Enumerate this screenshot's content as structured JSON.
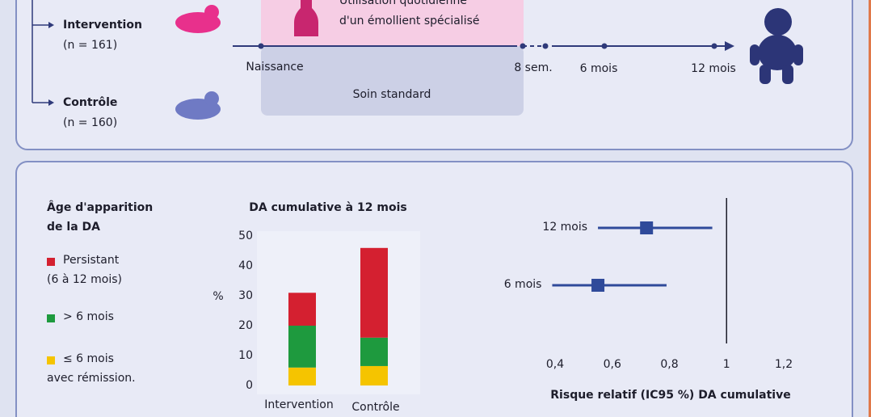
{
  "top": {
    "groups": [
      {
        "name": "Intervention",
        "n": "(n = 161)"
      },
      {
        "name": "Contrôle",
        "n": "(n = 160)"
      }
    ],
    "emollient": [
      "Utilisation quotidienne",
      "d'un émollient spécialisé"
    ],
    "standard": "Soin standard",
    "timeline": [
      "Naissance",
      "8 sem.",
      "6 mois",
      "12 mois"
    ]
  },
  "chart_data": [
    {
      "type": "bar",
      "stacked": true,
      "title": "DA cumulative à 12 mois",
      "ylabel": "%",
      "legend_title": "Âge d'apparition\nde la DA",
      "categories": [
        "Intervention",
        "Contrôle"
      ],
      "series": [
        {
          "name": "≤ 6 mois\navec rémission.",
          "color": "#f5c400",
          "values": [
            6,
            6.5
          ]
        },
        {
          "name": "> 6 mois",
          "color": "#1e9a3e",
          "values": [
            14,
            9.5
          ]
        },
        {
          "name": "Persistant\n(6 à 12 mois)",
          "color": "#d42030",
          "values": [
            11,
            30
          ]
        }
      ],
      "ylim": [
        0,
        50
      ],
      "yticks": [
        0,
        10,
        20,
        30,
        40,
        50
      ]
    },
    {
      "type": "forest",
      "xlabel": "Risque relatif (IC95 %) DA cumulative",
      "color": "#2f4a9a",
      "categories": [
        "12 mois",
        "6 mois"
      ],
      "values": [
        0.72,
        0.55
      ],
      "ci_low": [
        0.55,
        0.39
      ],
      "ci_high": [
        0.95,
        0.79
      ],
      "reference": 1,
      "xlim": [
        0.4,
        1.2
      ],
      "xticks": [
        {
          "value": 0.4,
          "label": "0,4"
        },
        {
          "value": 0.6,
          "label": "0,6"
        },
        {
          "value": 0.8,
          "label": "0,8"
        },
        1,
        {
          "value": 1.2,
          "label": "1,2"
        }
      ]
    }
  ]
}
